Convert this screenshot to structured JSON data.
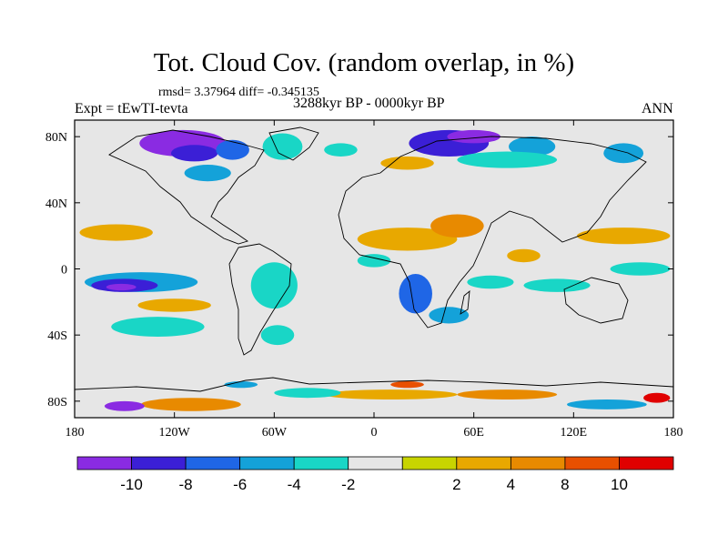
{
  "title": "Tot. Cloud Cov. (random overlap, in %)",
  "stats": "rmsd= 3.37964 diff= -0.345135",
  "experiment": "Expt = tEwTI-tevta",
  "period": "3288kyr BP - 0000kyr BP",
  "season": "ANN",
  "map": {
    "projection": "cylindrical equidistant",
    "lon_range": [
      -180,
      180
    ],
    "lat_range": [
      -90,
      90
    ],
    "background": "#e6e6e6"
  },
  "axes": {
    "x_ticks": [
      {
        "value": -180,
        "label": "180"
      },
      {
        "value": -120,
        "label": "120W"
      },
      {
        "value": -60,
        "label": "60W"
      },
      {
        "value": 0,
        "label": "0"
      },
      {
        "value": 60,
        "label": "60E"
      },
      {
        "value": 120,
        "label": "120E"
      },
      {
        "value": 180,
        "label": "180"
      }
    ],
    "y_ticks": [
      {
        "value": 80,
        "label": "80N"
      },
      {
        "value": 40,
        "label": "40N"
      },
      {
        "value": 0,
        "label": "0"
      },
      {
        "value": -40,
        "label": "40S"
      },
      {
        "value": -80,
        "label": "80S"
      }
    ]
  },
  "colorbar": {
    "colors": [
      "#8a2be2",
      "#3b1fd6",
      "#1f66e6",
      "#14a2d9",
      "#19d6c6",
      "#e6e6e6",
      "#c8d400",
      "#e8a800",
      "#e88a00",
      "#e85000",
      "#e00000"
    ],
    "labels": [
      "-10",
      "-8",
      "-6",
      "-4",
      "-2",
      "2",
      "4",
      "8",
      "10"
    ]
  },
  "anomalies": [
    {
      "lon": -115,
      "lat": 76,
      "rx": 26,
      "ry": 8,
      "color": "#8a2be2"
    },
    {
      "lon": -108,
      "lat": 70,
      "rx": 14,
      "ry": 5,
      "color": "#3b1fd6"
    },
    {
      "lon": -85,
      "lat": 72,
      "rx": 10,
      "ry": 6,
      "color": "#1f66e6"
    },
    {
      "lon": -55,
      "lat": 74,
      "rx": 12,
      "ry": 8,
      "color": "#19d6c6"
    },
    {
      "lon": -100,
      "lat": 58,
      "rx": 14,
      "ry": 5,
      "color": "#14a2d9"
    },
    {
      "lon": 45,
      "lat": 76,
      "rx": 24,
      "ry": 8,
      "color": "#3b1fd6"
    },
    {
      "lon": 60,
      "lat": 80,
      "rx": 16,
      "ry": 4,
      "color": "#8a2be2"
    },
    {
      "lon": 95,
      "lat": 74,
      "rx": 14,
      "ry": 6,
      "color": "#14a2d9"
    },
    {
      "lon": 80,
      "lat": 66,
      "rx": 30,
      "ry": 5,
      "color": "#19d6c6"
    },
    {
      "lon": 20,
      "lat": 64,
      "rx": 16,
      "ry": 4,
      "color": "#e8a800"
    },
    {
      "lon": 150,
      "lat": 70,
      "rx": 12,
      "ry": 6,
      "color": "#14a2d9"
    },
    {
      "lon": -20,
      "lat": 72,
      "rx": 10,
      "ry": 4,
      "color": "#19d6c6"
    },
    {
      "lon": 20,
      "lat": 18,
      "rx": 30,
      "ry": 7,
      "color": "#e8a800"
    },
    {
      "lon": 50,
      "lat": 26,
      "rx": 16,
      "ry": 7,
      "color": "#e88a00"
    },
    {
      "lon": -155,
      "lat": 22,
      "rx": 22,
      "ry": 5,
      "color": "#e8a800"
    },
    {
      "lon": 150,
      "lat": 20,
      "rx": 28,
      "ry": 5,
      "color": "#e8a800"
    },
    {
      "lon": -140,
      "lat": -8,
      "rx": 34,
      "ry": 6,
      "color": "#14a2d9"
    },
    {
      "lon": -150,
      "lat": -10,
      "rx": 20,
      "ry": 4,
      "color": "#3b1fd6"
    },
    {
      "lon": -152,
      "lat": -11,
      "rx": 9,
      "ry": 2,
      "color": "#8a2be2"
    },
    {
      "lon": -120,
      "lat": -22,
      "rx": 22,
      "ry": 4,
      "color": "#e8a800"
    },
    {
      "lon": -130,
      "lat": -35,
      "rx": 28,
      "ry": 6,
      "color": "#19d6c6"
    },
    {
      "lon": -60,
      "lat": -10,
      "rx": 14,
      "ry": 14,
      "color": "#19d6c6"
    },
    {
      "lon": -58,
      "lat": -40,
      "rx": 10,
      "ry": 6,
      "color": "#19d6c6"
    },
    {
      "lon": 25,
      "lat": -15,
      "rx": 10,
      "ry": 12,
      "color": "#1f66e6"
    },
    {
      "lon": 45,
      "lat": -28,
      "rx": 12,
      "ry": 5,
      "color": "#14a2d9"
    },
    {
      "lon": 0,
      "lat": 5,
      "rx": 10,
      "ry": 4,
      "color": "#19d6c6"
    },
    {
      "lon": 70,
      "lat": -8,
      "rx": 14,
      "ry": 4,
      "color": "#19d6c6"
    },
    {
      "lon": 110,
      "lat": -10,
      "rx": 20,
      "ry": 4,
      "color": "#19d6c6"
    },
    {
      "lon": 90,
      "lat": 8,
      "rx": 10,
      "ry": 4,
      "color": "#e8a800"
    },
    {
      "lon": 160,
      "lat": 0,
      "rx": 18,
      "ry": 4,
      "color": "#19d6c6"
    },
    {
      "lon": -110,
      "lat": -82,
      "rx": 30,
      "ry": 4,
      "color": "#e88a00"
    },
    {
      "lon": -150,
      "lat": -83,
      "rx": 12,
      "ry": 3,
      "color": "#8a2be2"
    },
    {
      "lon": 10,
      "lat": -76,
      "rx": 40,
      "ry": 3,
      "color": "#e8a800"
    },
    {
      "lon": 20,
      "lat": -70,
      "rx": 10,
      "ry": 2,
      "color": "#e85000"
    },
    {
      "lon": 80,
      "lat": -76,
      "rx": 30,
      "ry": 3,
      "color": "#e88a00"
    },
    {
      "lon": 140,
      "lat": -82,
      "rx": 24,
      "ry": 3,
      "color": "#14a2d9"
    },
    {
      "lon": 170,
      "lat": -78,
      "rx": 8,
      "ry": 3,
      "color": "#e00000"
    },
    {
      "lon": -40,
      "lat": -75,
      "rx": 20,
      "ry": 3,
      "color": "#19d6c6"
    },
    {
      "lon": -80,
      "lat": -70,
      "rx": 10,
      "ry": 2,
      "color": "#14a2d9"
    }
  ]
}
